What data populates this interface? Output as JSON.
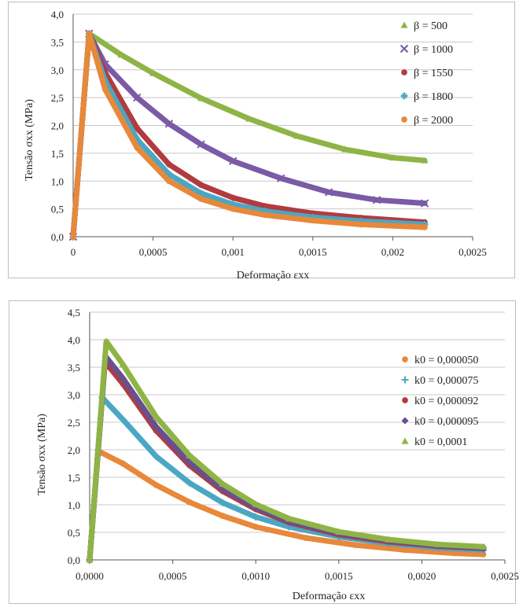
{
  "chart_data": [
    {
      "type": "line",
      "xlabel": "Deformação εxx",
      "ylabel": "Tensão σxx (MPa)",
      "xlim": [
        0,
        0.0025
      ],
      "ylim": [
        0,
        4.0
      ],
      "x_ticks": [
        "0",
        "0,0005",
        "0,001",
        "0,0015",
        "0,002",
        "0,0025"
      ],
      "y_ticks": [
        "0,0",
        "0,5",
        "1,0",
        "1,5",
        "2,0",
        "2,5",
        "3,0",
        "3,5",
        "4,0"
      ],
      "grid": true,
      "legend_position": "right",
      "series": [
        {
          "name": "β = 500",
          "color": "#8fb446",
          "marker": "triangle",
          "x": [
            0,
            0.0001,
            0.0003,
            0.0005,
            0.0008,
            0.0011,
            0.0014,
            0.0017,
            0.002,
            0.0022
          ],
          "y": [
            0,
            3.65,
            3.27,
            2.94,
            2.49,
            2.12,
            1.81,
            1.57,
            1.42,
            1.37
          ]
        },
        {
          "name": "β = 1000",
          "color": "#7b5aa6",
          "marker": "x",
          "x": [
            0,
            0.0001,
            0.0002,
            0.0004,
            0.0006,
            0.0008,
            0.001,
            0.0013,
            0.0016,
            0.0019,
            0.0022
          ],
          "y": [
            0,
            3.65,
            3.1,
            2.5,
            2.03,
            1.66,
            1.36,
            1.05,
            0.8,
            0.66,
            0.6
          ]
        },
        {
          "name": "β = 1550",
          "color": "#b23b3f",
          "marker": "circle",
          "x": [
            0,
            0.0001,
            0.0002,
            0.0004,
            0.0006,
            0.0008,
            0.001,
            0.0012,
            0.0015,
            0.0018,
            0.0022
          ],
          "y": [
            0,
            3.65,
            2.95,
            1.95,
            1.3,
            0.93,
            0.7,
            0.55,
            0.42,
            0.34,
            0.26
          ]
        },
        {
          "name": "β = 1800",
          "color": "#4aa7c4",
          "marker": "asterisk",
          "x": [
            0,
            0.0001,
            0.0002,
            0.0004,
            0.0006,
            0.0008,
            0.001,
            0.0012,
            0.0015,
            0.0018,
            0.0022
          ],
          "y": [
            0,
            3.65,
            2.8,
            1.75,
            1.12,
            0.78,
            0.58,
            0.46,
            0.35,
            0.28,
            0.22
          ]
        },
        {
          "name": "β = 2000",
          "color": "#e8883a",
          "marker": "circle",
          "x": [
            0,
            0.0001,
            0.0002,
            0.0004,
            0.0006,
            0.0008,
            0.001,
            0.0012,
            0.0015,
            0.0018,
            0.0022
          ],
          "y": [
            0,
            3.65,
            2.65,
            1.6,
            1.0,
            0.68,
            0.5,
            0.39,
            0.29,
            0.22,
            0.17
          ]
        }
      ]
    },
    {
      "type": "line",
      "xlabel": "Deformação εxx",
      "ylabel": "Tensão σxx (MPa)",
      "xlim": [
        0,
        0.0025
      ],
      "ylim": [
        0,
        4.5
      ],
      "x_ticks": [
        "0,0000",
        "0,0005",
        "0,0010",
        "0,0015",
        "0,0020",
        "0,0025"
      ],
      "y_ticks": [
        "0,0",
        "0,5",
        "1,0",
        "1,5",
        "2,0",
        "2,5",
        "3,0",
        "3,5",
        "4,0",
        "4,5"
      ],
      "grid": true,
      "legend_position": "right",
      "series": [
        {
          "name": "k0 = 0,000050",
          "color": "#e8883a",
          "marker": "circle",
          "x": [
            0,
            5e-05,
            0.0002,
            0.0004,
            0.0006,
            0.0008,
            0.001,
            0.0013,
            0.0016,
            0.0019,
            0.0022,
            0.00237
          ],
          "y": [
            0,
            1.98,
            1.75,
            1.36,
            1.05,
            0.8,
            0.6,
            0.4,
            0.27,
            0.18,
            0.12,
            0.1
          ]
        },
        {
          "name": "k0 = 0,000075",
          "color": "#4aa7c4",
          "marker": "plus",
          "x": [
            0,
            7.5e-05,
            0.0002,
            0.0004,
            0.0006,
            0.0008,
            0.001,
            0.0012,
            0.0015,
            0.0018,
            0.0021,
            0.00237
          ],
          "y": [
            0,
            2.95,
            2.55,
            1.88,
            1.4,
            1.04,
            0.78,
            0.6,
            0.42,
            0.3,
            0.22,
            0.18
          ]
        },
        {
          "name": "k0 = 0,000092",
          "color": "#b23b3f",
          "marker": "circle",
          "x": [
            0,
            9.2e-05,
            0.0002,
            0.0004,
            0.0006,
            0.0008,
            0.001,
            0.0012,
            0.0015,
            0.0018,
            0.0021,
            0.00237
          ],
          "y": [
            0,
            3.6,
            3.2,
            2.35,
            1.72,
            1.25,
            0.92,
            0.68,
            0.46,
            0.33,
            0.25,
            0.21
          ]
        },
        {
          "name": "k0 = 0,000095",
          "color": "#6a4f8f",
          "marker": "diamond",
          "x": [
            0,
            9.5e-05,
            0.0002,
            0.0004,
            0.0006,
            0.0008,
            0.001,
            0.0012,
            0.0015,
            0.0018,
            0.0021,
            0.00237
          ],
          "y": [
            0,
            3.7,
            3.3,
            2.42,
            1.77,
            1.29,
            0.95,
            0.7,
            0.48,
            0.35,
            0.26,
            0.22
          ]
        },
        {
          "name": "k0 = 0,0001",
          "color": "#8fb446",
          "marker": "triangle",
          "x": [
            0,
            0.0001,
            0.0002,
            0.0004,
            0.0006,
            0.0008,
            0.001,
            0.0012,
            0.0015,
            0.0018,
            0.0021,
            0.00237
          ],
          "y": [
            0,
            3.97,
            3.55,
            2.6,
            1.9,
            1.38,
            1.01,
            0.75,
            0.51,
            0.37,
            0.28,
            0.24
          ]
        }
      ]
    }
  ]
}
